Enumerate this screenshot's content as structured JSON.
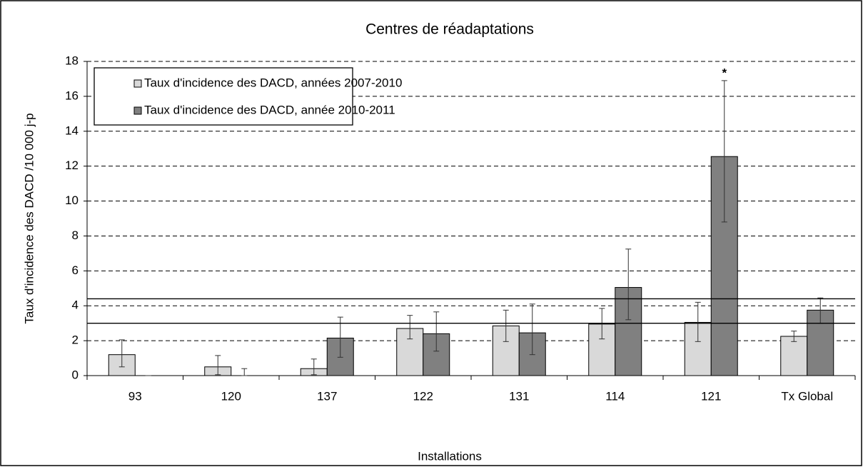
{
  "chart_data": {
    "type": "bar",
    "title": "Centres de réadaptations",
    "x_label": "Installations",
    "y_label": "Taux d'incidence des DACD /10 000 j-p",
    "categories": [
      "93",
      "120",
      "137",
      "122",
      "131",
      "114",
      "121",
      "Tx Global"
    ],
    "series": [
      {
        "name": "Taux d'incidence des DACD, années 2007-2010",
        "color": "#d9d9d9",
        "values": [
          1.2,
          0.5,
          0.4,
          2.7,
          2.85,
          2.95,
          3.05,
          2.25
        ],
        "lower": [
          0.5,
          0.05,
          0.05,
          2.1,
          1.95,
          2.1,
          1.95,
          1.95
        ],
        "upper": [
          2.05,
          1.15,
          0.95,
          3.45,
          3.75,
          3.85,
          4.2,
          2.55
        ]
      },
      {
        "name": "Taux d'incidence des DACD, année 2010-2011",
        "color": "#808080",
        "values": [
          0,
          0,
          2.15,
          2.4,
          2.45,
          5.05,
          12.55,
          3.75
        ],
        "lower": [
          0,
          0,
          1.05,
          1.4,
          1.2,
          3.2,
          8.8,
          3.0
        ],
        "upper": [
          0,
          0.4,
          3.35,
          3.65,
          4.1,
          7.25,
          16.9,
          4.45
        ]
      }
    ],
    "reference_lines": [
      4.4,
      3.0
    ],
    "annotations": [
      {
        "text": "*",
        "x": "121",
        "y": 17.3
      }
    ],
    "ylim": [
      0,
      18
    ],
    "yticks": [
      0,
      2,
      4,
      6,
      8,
      10,
      12,
      14,
      16,
      18
    ],
    "grid": true,
    "legend": "top-left"
  }
}
